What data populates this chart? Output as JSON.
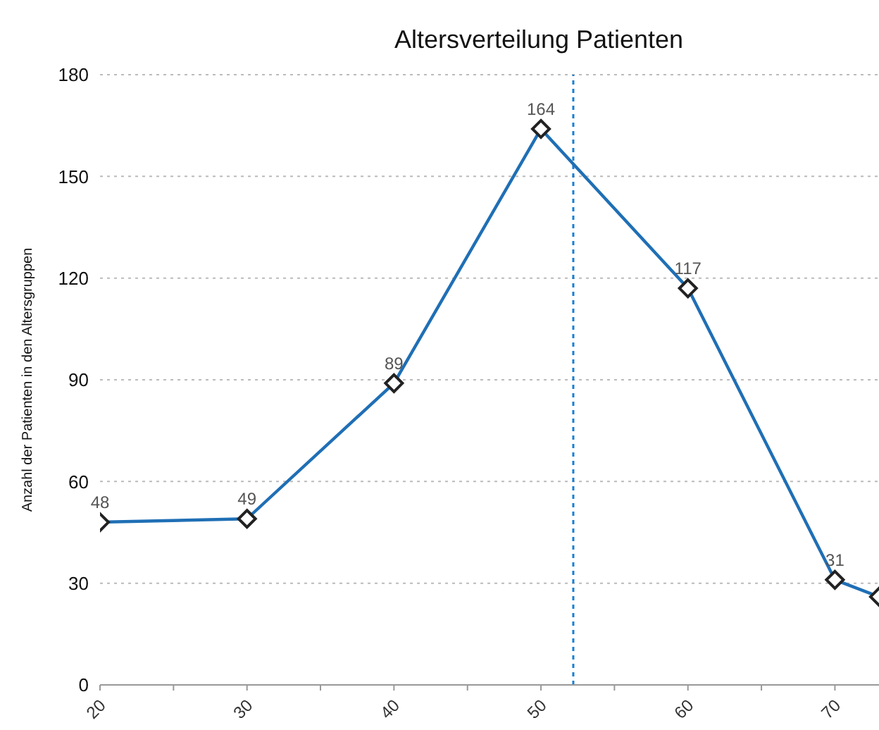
{
  "chart_data": {
    "type": "line",
    "title": "Altersverteilung Patienten",
    "ylabel": "Anzahl der Patienten in den Altersgruppen",
    "x": [
      20,
      30,
      40,
      50,
      60,
      70,
      73
    ],
    "series": [
      {
        "color": "#1f6fb5",
        "values": [
          48,
          49,
          89,
          164,
          117,
          31,
          26
        ],
        "value_labels": [
          "48",
          "49",
          "89",
          "164",
          "117",
          "31",
          null
        ]
      }
    ],
    "xlim": [
      20,
      73
    ],
    "xticks": [
      20,
      {
        "value": 25,
        "label": null
      },
      30,
      {
        "value": 35,
        "label": null
      },
      40,
      {
        "value": 45,
        "label": null
      },
      50,
      {
        "value": 55,
        "label": null
      },
      60,
      {
        "value": 65,
        "label": null
      },
      70
    ],
    "ylim": [
      0,
      180
    ],
    "yticks": [
      0,
      30,
      60,
      90,
      120,
      150,
      180
    ],
    "grid": "y",
    "marker": "diamond",
    "line_style": "solid",
    "ref_lines": [
      {
        "axis": "x",
        "value": 52.2,
        "color": "#1a7fd0",
        "line_style": "dotted"
      }
    ]
  }
}
